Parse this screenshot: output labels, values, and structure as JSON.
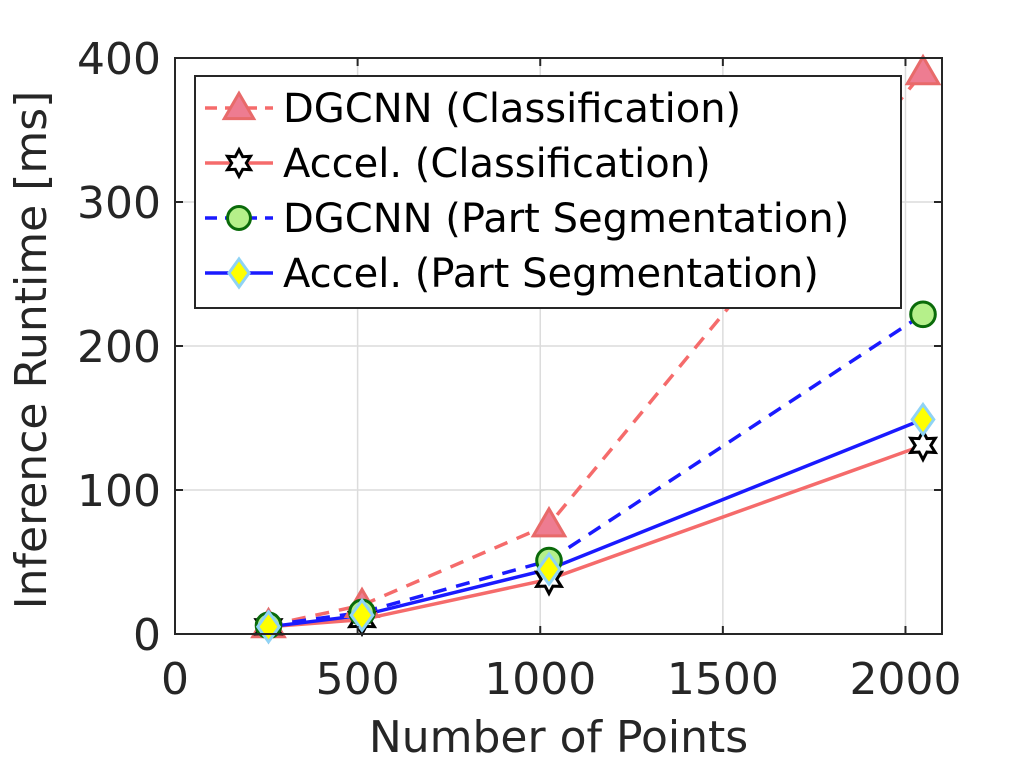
{
  "chart_data": {
    "type": "line",
    "title": "",
    "xlabel": "Number of Points",
    "ylabel": "Inference Runtime [ms]",
    "xlim": [
      0,
      2100
    ],
    "ylim": [
      0,
      400
    ],
    "xticks": [
      0,
      500,
      1000,
      1500,
      2000
    ],
    "yticks": [
      0,
      100,
      200,
      300,
      400
    ],
    "xtick_labels": [
      "0",
      "500",
      "1000",
      "1500",
      "2000"
    ],
    "ytick_labels": [
      "0",
      "100",
      "200",
      "300",
      "400"
    ],
    "grid": true,
    "legend_position": "top-left",
    "x": [
      256,
      512,
      1024,
      2048
    ],
    "series": [
      {
        "name": "DGCNN (Classification)",
        "values": [
          6,
          20,
          76,
          390
        ],
        "color": "#f56b6b",
        "line_style": "dashed",
        "marker": "triangle",
        "marker_fill": "#ee7c91",
        "marker_edge": "#e86a6a"
      },
      {
        "name": "Accel. (Classification)",
        "values": [
          5,
          10,
          38,
          131
        ],
        "color": "#f56b6b",
        "line_style": "solid",
        "marker": "hexagram",
        "marker_fill": "#ffffff",
        "marker_edge": "#000000"
      },
      {
        "name": "DGCNN (Part Segmentation)",
        "values": [
          6,
          15,
          51,
          222
        ],
        "color": "#1a1aff",
        "line_style": "dashed",
        "marker": "circle",
        "marker_fill": "#b5f08a",
        "marker_edge": "#0a6b0a"
      },
      {
        "name": "Accel. (Part Segmentation)",
        "values": [
          5,
          13,
          45,
          149
        ],
        "color": "#1a1aff",
        "line_style": "solid",
        "marker": "diamond",
        "marker_fill": "#ffff00",
        "marker_edge": "#8fd3f5"
      }
    ]
  }
}
